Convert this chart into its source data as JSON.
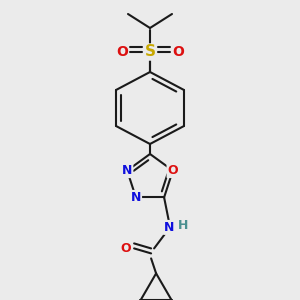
{
  "bg_color": "#ebebeb",
  "bond_color": "#1a1a1a",
  "bond_width": 1.5,
  "atom_colors": {
    "C": "#1a1a1a",
    "H": "#4a9090",
    "N": "#1010dd",
    "O": "#dd1010",
    "S": "#c8a800"
  }
}
